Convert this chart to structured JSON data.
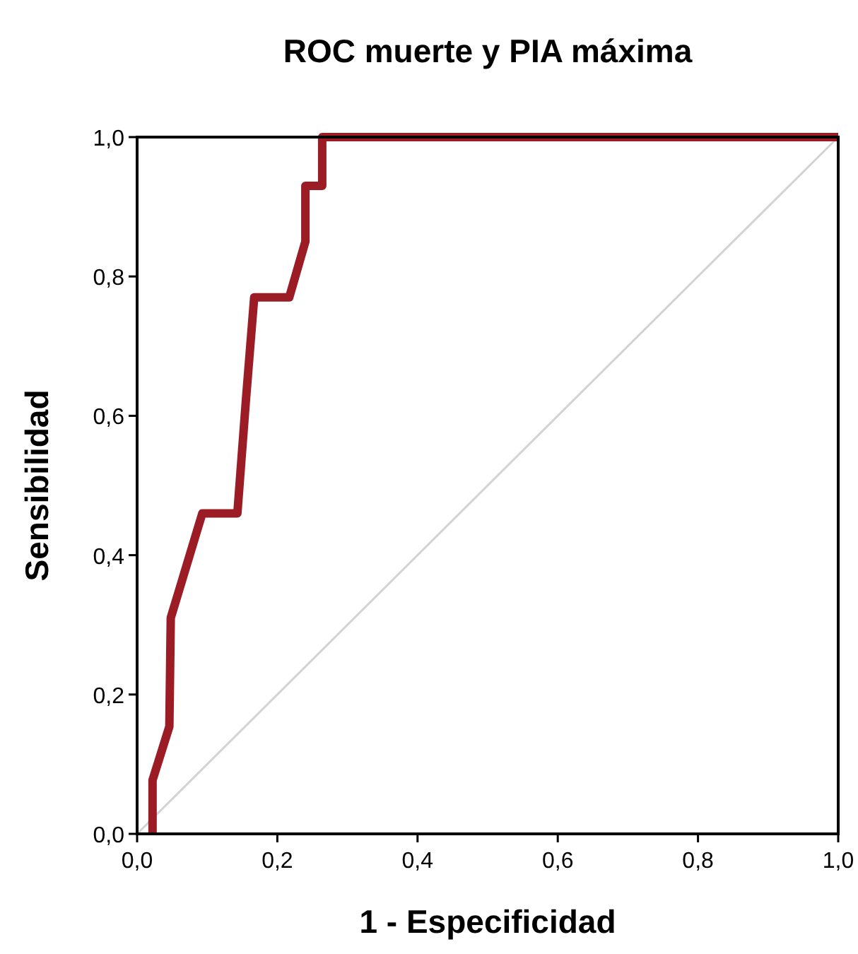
{
  "chart_data": {
    "type": "line",
    "title": "ROC muerte y PIA máxima",
    "xlabel": "1 - Especificidad",
    "ylabel": "Sensibilidad",
    "xlim": [
      0,
      1
    ],
    "ylim": [
      0,
      1
    ],
    "xticks": [
      {
        "value": 0,
        "label": "0,0"
      },
      {
        "value": 0.2,
        "label": "0,2"
      },
      {
        "value": 0.4,
        "label": "0,4"
      },
      {
        "value": 0.6,
        "label": "0,6"
      },
      {
        "value": 0.8,
        "label": "0,8"
      },
      {
        "value": 1,
        "label": "1,0"
      }
    ],
    "yticks": [
      {
        "value": 0,
        "label": "0,0"
      },
      {
        "value": 0.2,
        "label": "0,2"
      },
      {
        "value": 0.4,
        "label": "0,4"
      },
      {
        "value": 0.6,
        "label": "0,6"
      },
      {
        "value": 0.8,
        "label": "0,8"
      },
      {
        "value": 1,
        "label": "1,0"
      }
    ],
    "grid": false,
    "marker": "none",
    "series": [
      {
        "color": "#d3d3d3",
        "x": [
          0,
          1
        ],
        "values": [
          0,
          1
        ]
      },
      {
        "color": "#9b1c24",
        "x": [
          0.022,
          0.022,
          0.046,
          0.048,
          0.093,
          0.143,
          0.155,
          0.167,
          0.217,
          0.24,
          0.24,
          0.264,
          0.264,
          1
        ],
        "values": [
          0,
          0.077,
          0.154,
          0.31,
          0.46,
          0.46,
          0.62,
          0.77,
          0.77,
          0.85,
          0.93,
          0.93,
          1,
          1
        ]
      }
    ]
  }
}
